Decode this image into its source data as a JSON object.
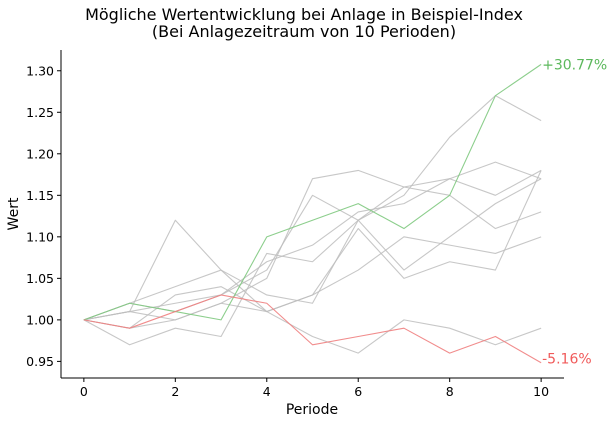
{
  "chart_data": {
    "type": "line",
    "title": "Mögliche Wertentwicklung bei Anlage in Beispiel-Index",
    "subtitle": "(Bei Anlagezeitraum von 10 Perioden)",
    "xlabel": "Periode",
    "ylabel": "Wert",
    "xlim": [
      -0.5,
      10.5
    ],
    "ylim": [
      0.93,
      1.325
    ],
    "xticks": [
      0,
      2,
      4,
      6,
      8,
      10
    ],
    "yticks": [
      0.95,
      1.0,
      1.05,
      1.1,
      1.15,
      1.2,
      1.25,
      1.3
    ],
    "ytick_labels": [
      "0.95",
      "1.00",
      "1.05",
      "1.10",
      "1.15",
      "1.20",
      "1.25",
      "1.30"
    ],
    "grid": false,
    "x": [
      0,
      1,
      2,
      3,
      4,
      5,
      6,
      7,
      8,
      9,
      10
    ],
    "colors": {
      "gray": "#bdbdbd",
      "best": "#7fc97f",
      "worst": "#f08080",
      "best_label": "#5cb85c",
      "worst_label": "#f05a5a"
    },
    "series": [
      {
        "role": "other",
        "values": [
          1.0,
          1.02,
          1.04,
          1.06,
          1.01,
          1.03,
          1.06,
          1.1,
          1.09,
          1.08,
          1.1
        ]
      },
      {
        "role": "other",
        "values": [
          1.0,
          1.01,
          1.12,
          1.06,
          1.03,
          1.02,
          1.12,
          1.15,
          1.22,
          1.27,
          1.24
        ]
      },
      {
        "role": "other",
        "values": [
          1.0,
          0.97,
          0.99,
          0.98,
          1.08,
          1.07,
          1.12,
          1.16,
          1.15,
          1.11,
          1.13
        ]
      },
      {
        "role": "other",
        "values": [
          1.0,
          1.01,
          1.0,
          1.02,
          1.05,
          1.17,
          1.18,
          1.16,
          1.17,
          1.19,
          1.17
        ]
      },
      {
        "role": "other",
        "values": [
          1.0,
          0.99,
          1.03,
          1.04,
          1.01,
          1.03,
          1.11,
          1.05,
          1.07,
          1.06,
          1.18
        ]
      },
      {
        "role": "other",
        "values": [
          1.0,
          1.02,
          1.01,
          1.03,
          1.07,
          1.09,
          1.13,
          1.14,
          1.17,
          1.15,
          1.18
        ]
      },
      {
        "role": "other",
        "values": [
          1.0,
          1.01,
          1.02,
          1.03,
          1.06,
          1.15,
          1.12,
          1.06,
          1.1,
          1.14,
          1.17
        ]
      },
      {
        "role": "other",
        "values": [
          1.0,
          0.99,
          1.0,
          1.02,
          1.01,
          0.98,
          0.96,
          1.0,
          0.99,
          0.97,
          0.99
        ]
      },
      {
        "role": "best",
        "values": [
          1.0,
          1.02,
          1.01,
          1.0,
          1.1,
          1.12,
          1.14,
          1.11,
          1.15,
          1.27,
          1.3077
        ]
      },
      {
        "role": "worst",
        "values": [
          1.0,
          0.99,
          1.01,
          1.03,
          1.02,
          0.97,
          0.98,
          0.99,
          0.96,
          0.98,
          0.9484
        ]
      }
    ],
    "annotations": {
      "best": "+30.77%",
      "worst": "-5.16%"
    }
  }
}
